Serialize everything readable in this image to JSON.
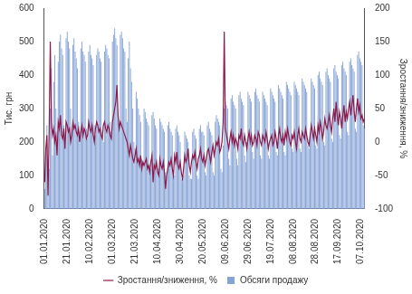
{
  "chart_data": {
    "type": "bar",
    "ylabel": "Тис. грн",
    "y2label": "Зростання/зниження, %",
    "categories": [
      "01.01.2020",
      null,
      null,
      null,
      null,
      null,
      null,
      null,
      null,
      null,
      null,
      null,
      null,
      null,
      null,
      null,
      null,
      null,
      null,
      null,
      "21.01.2020",
      null,
      null,
      null,
      null,
      null,
      null,
      null,
      null,
      null,
      null,
      null,
      null,
      null,
      null,
      null,
      null,
      null,
      null,
      null,
      "10.02.2020",
      null,
      null,
      null,
      null,
      null,
      null,
      null,
      null,
      null,
      null,
      null,
      null,
      null,
      null,
      null,
      null,
      null,
      null,
      null,
      "01.03.2020",
      null,
      null,
      null,
      null,
      null,
      null,
      null,
      null,
      null,
      null,
      null,
      null,
      null,
      null,
      null,
      null,
      null,
      null,
      null,
      "21.03.2020",
      null,
      null,
      null,
      null,
      null,
      null,
      null,
      null,
      null,
      null,
      null,
      null,
      null,
      null,
      null,
      null,
      null,
      null,
      null,
      "10.04.2020",
      null,
      null,
      null,
      null,
      null,
      null,
      null,
      null,
      null,
      null,
      null,
      null,
      null,
      null,
      null,
      null,
      null,
      null,
      null,
      "30.04.2020",
      null,
      null,
      null,
      null,
      null,
      null,
      null,
      null,
      null,
      null,
      null,
      null,
      null,
      null,
      null,
      null,
      null,
      null,
      null,
      "20.05.2020",
      null,
      null,
      null,
      null,
      null,
      null,
      null,
      null,
      null,
      null,
      null,
      null,
      null,
      null,
      null,
      null,
      null,
      null,
      null,
      "09.06.2020",
      null,
      null,
      null,
      null,
      null,
      null,
      null,
      null,
      null,
      null,
      null,
      null,
      null,
      null,
      null,
      null,
      null,
      null,
      null,
      "29.06.2020",
      null,
      null,
      null,
      null,
      null,
      null,
      null,
      null,
      null,
      null,
      null,
      null,
      null,
      null,
      null,
      null,
      null,
      null,
      null,
      "19.07.2020",
      null,
      null,
      null,
      null,
      null,
      null,
      null,
      null,
      null,
      null,
      null,
      null,
      null,
      null,
      null,
      null,
      null,
      null,
      null,
      "08.08.2020",
      null,
      null,
      null,
      null,
      null,
      null,
      null,
      null,
      null,
      null,
      null,
      null,
      null,
      null,
      null,
      null,
      null,
      null,
      null,
      "28.08.2020",
      null,
      null,
      null,
      null,
      null,
      null,
      null,
      null,
      null,
      null,
      null,
      null,
      null,
      null,
      null,
      null,
      null,
      null,
      null,
      "17.09.2020",
      null,
      null,
      null,
      null,
      null,
      null,
      null,
      null,
      null,
      null,
      null,
      null,
      null,
      null,
      null,
      null,
      null,
      null,
      null,
      "07.10.2020",
      null,
      null,
      null
    ],
    "series": [
      {
        "name": "Обсяги продажу",
        "type": "bar",
        "color": "#86a3d6",
        "values": [
          60,
          180,
          250,
          150,
          120,
          300,
          420,
          160,
          380,
          460,
          300,
          180,
          440,
          500,
          520,
          480,
          460,
          250,
          200,
          510,
          530,
          500,
          480,
          300,
          220,
          490,
          510,
          470,
          450,
          420,
          260,
          230,
          480,
          500,
          470,
          460,
          440,
          240,
          210,
          470,
          490,
          460,
          450,
          430,
          250,
          220,
          460,
          480,
          470,
          450,
          440,
          230,
          200,
          470,
          490,
          480,
          460,
          450,
          260,
          230,
          500,
          520,
          540,
          510,
          490,
          280,
          250,
          520,
          530,
          510,
          480,
          470,
          300,
          260,
          450,
          500,
          420,
          380,
          300,
          200,
          180,
          350,
          330,
          300,
          280,
          260,
          150,
          140,
          300,
          290,
          270,
          260,
          250,
          130,
          120,
          280,
          290,
          270,
          250,
          240,
          120,
          110,
          270,
          260,
          250,
          240,
          230,
          110,
          100,
          250,
          260,
          240,
          230,
          220,
          110,
          100,
          240,
          250,
          230,
          220,
          200,
          90,
          80,
          100,
          230,
          220,
          210,
          200,
          100,
          90,
          90,
          230,
          240,
          220,
          210,
          100,
          90,
          240,
          250,
          230,
          230,
          220,
          110,
          100,
          250,
          260,
          240,
          230,
          220,
          110,
          100,
          260,
          280,
          270,
          260,
          250,
          120,
          110,
          190,
          300,
          320,
          310,
          300,
          150,
          130,
          330,
          340,
          320,
          310,
          300,
          150,
          130,
          340,
          350,
          330,
          320,
          310,
          160,
          140,
          200,
          350,
          340,
          330,
          320,
          170,
          150,
          350,
          360,
          340,
          330,
          320,
          160,
          150,
          350,
          340,
          330,
          320,
          310,
          160,
          150,
          360,
          350,
          340,
          330,
          320,
          170,
          160,
          370,
          360,
          350,
          340,
          330,
          170,
          160,
          380,
          370,
          360,
          350,
          340,
          180,
          170,
          380,
          370,
          360,
          350,
          340,
          180,
          170,
          390,
          380,
          370,
          360,
          350,
          190,
          180,
          220,
          390,
          380,
          370,
          360,
          190,
          180,
          400,
          410,
          390,
          380,
          370,
          200,
          190,
          410,
          420,
          400,
          390,
          380,
          210,
          200,
          420,
          430,
          410,
          400,
          390,
          220,
          210,
          430,
          440,
          420,
          410,
          400,
          230,
          220,
          440,
          450,
          430,
          420,
          410,
          240,
          230,
          460,
          470,
          450,
          440,
          430,
          250,
          240
        ]
      },
      {
        "name": "Зростання/зниження, %",
        "type": "line",
        "color": "#8b1a4a",
        "axis": "y2",
        "values": [
          -60,
          -10,
          10,
          -80,
          20,
          150,
          30,
          10,
          20,
          0,
          10,
          -20,
          30,
          20,
          40,
          10,
          5,
          20,
          -10,
          30,
          25,
          15,
          20,
          0,
          10,
          30,
          20,
          25,
          15,
          10,
          20,
          0,
          15,
          25,
          10,
          20,
          15,
          5,
          10,
          30,
          20,
          15,
          25,
          10,
          0,
          20,
          30,
          25,
          15,
          20,
          10,
          5,
          25,
          30,
          20,
          15,
          25,
          20,
          10,
          5,
          30,
          40,
          50,
          60,
          85,
          40,
          20,
          30,
          25,
          20,
          15,
          10,
          5,
          0,
          -10,
          -20,
          -5,
          -15,
          -25,
          -30,
          -20,
          -10,
          -30,
          -25,
          -35,
          -20,
          -40,
          -30,
          -35,
          -30,
          -25,
          -40,
          -35,
          -45,
          -30,
          -20,
          -60,
          -35,
          -40,
          -30,
          -45,
          -50,
          -25,
          -35,
          -40,
          -30,
          -45,
          -70,
          -50,
          -40,
          -30,
          -35,
          -25,
          -40,
          -50,
          -20,
          -30,
          -15,
          -35,
          -40,
          -30,
          -45,
          -55,
          -40,
          -20,
          -30,
          -25,
          -10,
          -35,
          -45,
          -30,
          -20,
          -25,
          -15,
          -30,
          -40,
          -25,
          -20,
          -10,
          -25,
          -30,
          -20,
          -35,
          -25,
          -15,
          -10,
          -20,
          -30,
          -15,
          -5,
          -20,
          -10,
          0,
          -5,
          5,
          -15,
          -10,
          0,
          30,
          165,
          20,
          10,
          0,
          -10,
          5,
          15,
          0,
          10,
          -5,
          5,
          0,
          -10,
          10,
          5,
          20,
          0,
          -5,
          10,
          0,
          -10,
          5,
          15,
          0,
          10,
          -5,
          0,
          10,
          5,
          -5,
          15,
          10,
          0,
          -5,
          10,
          5,
          0,
          15,
          5,
          -10,
          0,
          5,
          10,
          -5,
          0,
          15,
          5,
          -10,
          10,
          20,
          5,
          0,
          10,
          -5,
          15,
          5,
          20,
          10,
          0,
          -5,
          10,
          5,
          15,
          0,
          -10,
          10,
          20,
          5,
          0,
          15,
          10,
          5,
          20,
          10,
          0,
          -5,
          10,
          25,
          15,
          5,
          20,
          10,
          0,
          25,
          15,
          30,
          20,
          5,
          15,
          35,
          25,
          20,
          30,
          40,
          25,
          15,
          35,
          50,
          30,
          60,
          40,
          25,
          45,
          35,
          20,
          40,
          55,
          30,
          45,
          35,
          50,
          60,
          40,
          55,
          70,
          45,
          30,
          50,
          65,
          45,
          55,
          35,
          40,
          30,
          35
        ]
      }
    ],
    "ylim": [
      0,
      600
    ],
    "yticks": [
      0,
      100,
      200,
      300,
      400,
      500,
      600
    ],
    "y2lim": [
      -100,
      200
    ],
    "y2ticks": [
      -100,
      -50,
      0,
      50,
      100,
      150,
      200
    ],
    "grid": false,
    "legend": "bottom"
  }
}
